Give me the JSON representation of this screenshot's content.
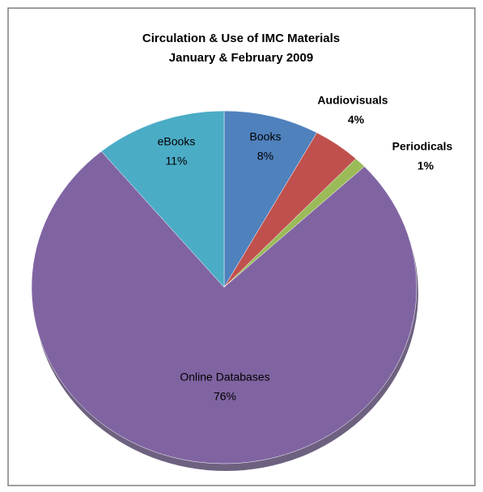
{
  "chart_data": {
    "type": "pie",
    "title": "Circulation & Use of IMC Materials",
    "subtitle": "January & February 2009",
    "categories": [
      "Books",
      "Audiovisuals",
      "Periodicals",
      "Online Databases",
      "eBooks"
    ],
    "values": [
      8,
      4,
      1,
      76,
      11
    ],
    "value_labels": [
      "8%",
      "4%",
      "1%",
      "76%",
      "11%"
    ],
    "colors": [
      "#4f81bd",
      "#c0504d",
      "#9bbb59",
      "#8064a2",
      "#4bacc6"
    ]
  }
}
